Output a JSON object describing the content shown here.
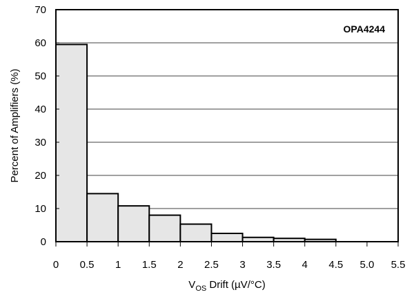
{
  "chart_data": {
    "type": "bar",
    "annotation": "OPA4244",
    "xlabel": {
      "main": "V",
      "sub": "OS",
      "rest": " Drift (µV/°C)"
    },
    "ylabel": "Percent of Amplifiers (%)",
    "ylim": [
      0,
      70
    ],
    "yticks": [
      "0",
      "10",
      "20",
      "30",
      "40",
      "50",
      "60",
      "70"
    ],
    "xticks": [
      "0",
      "0.5",
      "1",
      "1.5",
      "2",
      "2.5",
      "3",
      "3.5",
      "4",
      "4.5",
      "5.0",
      "5.5"
    ],
    "bin_edges": [
      0,
      0.5,
      1,
      1.5,
      2,
      2.5,
      3,
      3.5,
      4,
      4.5,
      5.0,
      5.5
    ],
    "values": [
      59.5,
      14.5,
      10.8,
      8.0,
      5.3,
      2.5,
      1.3,
      1.0,
      0.7,
      0,
      0
    ],
    "grid": true,
    "bar_color": "#e6e6e6",
    "edge_color": "#000000"
  }
}
